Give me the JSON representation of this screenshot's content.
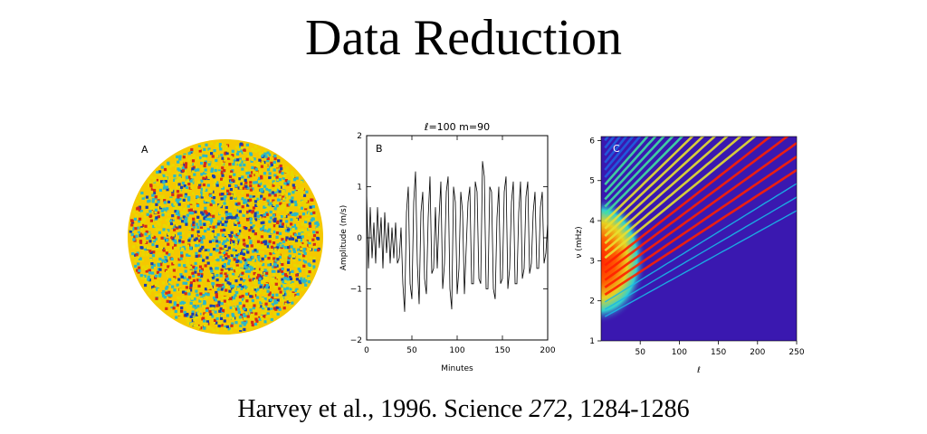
{
  "page": {
    "title": "Data Reduction",
    "citation_prefix": "Harvey et al., 1996. Science ",
    "citation_volume": "272",
    "citation_suffix": ", 1284-1286"
  },
  "chart_data": [
    {
      "type": "heatmap",
      "panel_label": "A",
      "description": "solar disk velocity image",
      "colors": [
        "#f5c800",
        "#e8d800",
        "#2bb8c8",
        "#1a3fb0",
        "#d42a1a"
      ]
    },
    {
      "type": "line",
      "panel_label": "B",
      "title": "ℓ=100  m=90",
      "xlabel": "Minutes",
      "ylabel": "Amplitude (m/s)",
      "xlim": [
        0,
        200
      ],
      "ylim": [
        -2,
        2
      ],
      "xticks": [
        "0",
        "50",
        "100",
        "150",
        "200"
      ],
      "yticks": [
        "−2",
        "−1",
        "0",
        "1",
        "2"
      ],
      "series": [
        {
          "x": [
            0,
            2,
            4,
            6,
            8,
            10,
            12,
            14,
            16,
            18,
            20,
            22,
            24,
            26,
            28,
            30,
            32,
            34,
            36,
            38,
            40,
            42,
            44,
            46,
            48,
            50,
            52,
            54,
            56,
            58,
            60,
            62,
            64,
            66,
            68,
            70,
            72,
            74,
            76,
            78,
            80,
            82,
            84,
            86,
            88,
            90,
            92,
            94,
            96,
            98,
            100,
            102,
            104,
            106,
            108,
            110,
            112,
            114,
            116,
            118,
            120,
            122,
            124,
            126,
            128,
            130,
            132,
            134,
            136,
            138,
            140,
            142,
            144,
            146,
            148,
            150,
            152,
            154,
            156,
            158,
            160,
            162,
            164,
            166,
            168,
            170,
            172,
            174,
            176,
            178,
            180,
            182,
            184,
            186,
            188,
            190,
            192,
            194,
            196,
            198,
            200
          ],
          "y": [
            0.9,
            -0.6,
            0.6,
            -0.4,
            0.3,
            -0.5,
            0.6,
            -0.2,
            0.4,
            -0.6,
            0.5,
            -0.3,
            0.3,
            -0.5,
            0.2,
            -0.4,
            0.3,
            -0.5,
            -0.4,
            0.2,
            -0.9,
            -1.45,
            0.5,
            1.0,
            -0.9,
            -1.2,
            0.7,
            1.3,
            -0.5,
            -1.3,
            0.5,
            0.9,
            -0.8,
            -1.1,
            0.4,
            1.2,
            -0.7,
            -0.6,
            0.6,
            -0.6,
            0.4,
            1.1,
            -1.0,
            -0.5,
            0.9,
            1.2,
            -1.0,
            -1.4,
            1.0,
            0.7,
            -1.1,
            -0.6,
            0.9,
            0.5,
            -1.1,
            -0.2,
            0.7,
            1.0,
            -0.9,
            -0.9,
            1.1,
            0.9,
            -0.8,
            -0.9,
            1.5,
            1.2,
            -1.0,
            -1.0,
            1.0,
            0.9,
            -1.0,
            -1.2,
            0.4,
            1.0,
            -0.9,
            -0.8,
            0.9,
            1.2,
            -1.0,
            -0.6,
            0.7,
            1.1,
            -0.9,
            -0.9,
            0.5,
            1.1,
            -0.8,
            -0.6,
            0.8,
            1.1,
            -0.7,
            -0.5,
            0.5,
            0.9,
            -0.6,
            -0.6,
            0.6,
            0.9,
            -0.5,
            -0.3,
            0.3
          ]
        }
      ]
    },
    {
      "type": "heatmap",
      "panel_label": "C",
      "xlabel": "ℓ",
      "ylabel": "ν (mHz)",
      "xlim": [
        0,
        250
      ],
      "ylim": [
        1,
        6.1
      ],
      "xticks": [
        "50",
        "100",
        "150",
        "200",
        "250"
      ],
      "yticks": [
        "1",
        "2",
        "3",
        "4",
        "5",
        "6"
      ],
      "background_color": "#3a18b0",
      "colors": [
        "#3a18b0",
        "#1f5fe0",
        "#18b8e8",
        "#40e0a0",
        "#e8e030",
        "#ff2000"
      ]
    }
  ]
}
